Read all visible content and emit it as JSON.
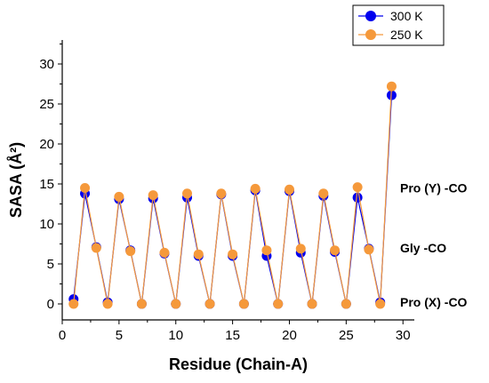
{
  "chart_data": {
    "type": "line",
    "xlabel": "Residue (Chain-A)",
    "ylabel": "SASA (Å²)",
    "xlim": [
      0,
      31
    ],
    "ylim": [
      -2,
      33
    ],
    "x_ticks": [
      0,
      5,
      10,
      15,
      20,
      25,
      30
    ],
    "y_ticks": [
      0,
      5,
      10,
      15,
      20,
      25,
      30
    ],
    "legend_position": "top-right",
    "annotations": [
      {
        "text": "Pro (Y) -CO",
        "y": 14.5
      },
      {
        "text": "Gly -CO",
        "y": 7.0
      },
      {
        "text": "Pro (X) -CO",
        "y": 0.2
      }
    ],
    "x": [
      1,
      2,
      3,
      4,
      5,
      6,
      7,
      8,
      9,
      10,
      11,
      12,
      13,
      14,
      15,
      16,
      17,
      18,
      19,
      20,
      21,
      22,
      23,
      24,
      25,
      26,
      27,
      28,
      29
    ],
    "series": [
      {
        "name": "300 K",
        "color": "#0000ee",
        "values": [
          0.6,
          13.8,
          7.1,
          0.2,
          13.1,
          6.7,
          0.0,
          13.2,
          6.3,
          0.0,
          13.3,
          6.0,
          0.0,
          13.7,
          6.0,
          0.0,
          14.2,
          6.0,
          0.0,
          14.1,
          6.4,
          0.0,
          13.5,
          6.5,
          0.0,
          13.3,
          6.9,
          0.2,
          26.1
        ]
      },
      {
        "name": "250 K",
        "color": "#f5993b",
        "values": [
          0.0,
          14.5,
          7.0,
          0.0,
          13.4,
          6.6,
          0.0,
          13.6,
          6.4,
          0.0,
          13.8,
          6.2,
          0.0,
          13.8,
          6.2,
          0.0,
          14.4,
          6.7,
          0.0,
          14.3,
          6.9,
          0.0,
          13.8,
          6.7,
          0.0,
          14.6,
          6.8,
          0.0,
          27.2
        ]
      }
    ]
  }
}
